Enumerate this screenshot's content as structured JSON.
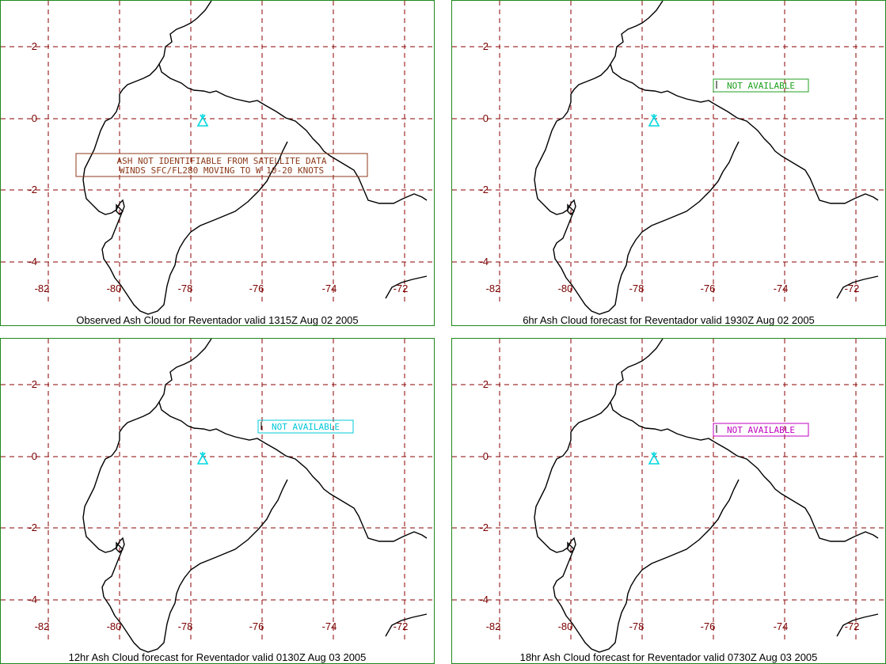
{
  "colors": {
    "panel_border": "#1e8a1e",
    "grid": "#8b0000",
    "tick_label": "#7a0000",
    "coast": "#000000",
    "volcano": "#00d8e0"
  },
  "axes": {
    "x_ticks": [
      "-82",
      "-80",
      "-78",
      "-76",
      "-74",
      "-72"
    ],
    "y_ticks": [
      "2",
      "0",
      "-2",
      "-4"
    ]
  },
  "volcano_icon": "volcano-icon",
  "panels": [
    {
      "caption": "Observed Ash Cloud for Reventador valid 1315Z Aug 02 2005",
      "note_lines": [
        "ASH NOT IDENTIFIABLE FROM SATELLITE DATA",
        "WINDS SFC/FL280 MOVING TO W 10-20 KNOTS"
      ],
      "note_color": "#8b3a1a"
    },
    {
      "caption": "6hr Ash Cloud forecast for Reventador valid 1930Z Aug 02 2005",
      "note_lines": [
        "NOT AVAILABLE"
      ],
      "note_color": "#20a020"
    },
    {
      "caption": "12hr Ash Cloud forecast for Reventador valid 0130Z Aug 03 2005",
      "note_lines": [
        "NOT AVAILABLE"
      ],
      "note_color": "#00c8d8"
    },
    {
      "caption": "18hr Ash Cloud forecast for Reventador valid 0730Z Aug 03 2005",
      "note_lines": [
        "NOT AVAILABLE"
      ],
      "note_color": "#c000c0"
    }
  ]
}
